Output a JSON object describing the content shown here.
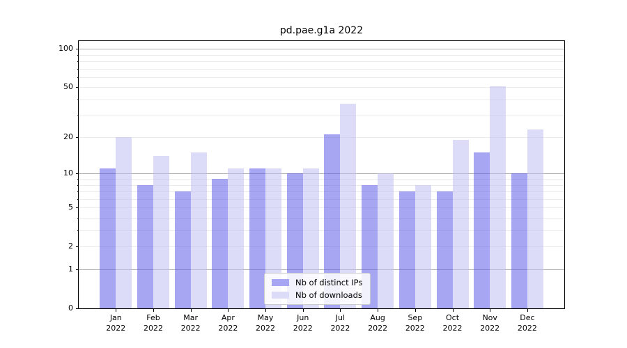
{
  "title": "pd.pae.g1a 2022",
  "chart_data": {
    "type": "bar",
    "title": "pd.pae.g1a 2022",
    "categories": [
      "Jan 2022",
      "Feb 2022",
      "Mar 2022",
      "Apr 2022",
      "May 2022",
      "Jun 2022",
      "Jul 2022",
      "Aug 2022",
      "Sep 2022",
      "Oct 2022",
      "Nov 2022",
      "Dec 2022"
    ],
    "series": [
      {
        "name": "Nb of distinct IPs",
        "color": "#a6a6f2",
        "fill": "rgba(93,93,231,0.55)",
        "values": [
          11,
          8,
          7,
          9,
          11,
          10,
          21,
          8,
          7,
          7,
          15,
          10
        ]
      },
      {
        "name": "Nb of downloads",
        "color": "#dcdcf8",
        "fill": "rgba(191,191,242,0.55)",
        "values": [
          20,
          14,
          15,
          11,
          11,
          11,
          37,
          10,
          8,
          19,
          51,
          23
        ]
      }
    ],
    "xlabel": "",
    "ylabel": "",
    "yscale": "log1p",
    "ylim": [
      0,
      115
    ],
    "y_ticks": [
      0,
      1,
      2,
      5,
      10,
      20,
      50,
      100
    ],
    "gridlines": {
      "major": [
        1,
        10,
        100
      ],
      "minor": [
        2,
        3,
        4,
        5,
        6,
        7,
        8,
        9,
        20,
        30,
        40,
        50,
        60,
        70,
        80,
        90
      ]
    },
    "grid": true,
    "legend_position": "lower center",
    "grid_major_color": "#b0b0b0",
    "grid_minor_color": "#ebebeb"
  }
}
